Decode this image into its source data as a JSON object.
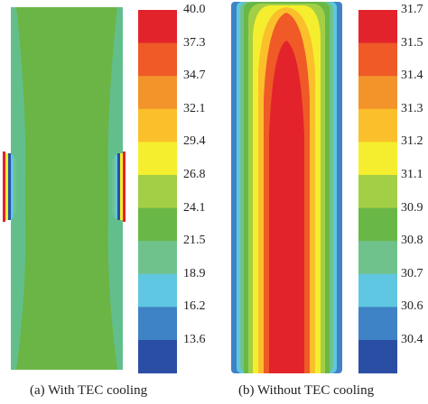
{
  "panels": {
    "a": {
      "caption": "(a)  With TEC cooling",
      "colorbar_ticks": [
        "40.0",
        "37.3",
        "34.7",
        "32.1",
        "29.4",
        "26.8",
        "24.1",
        "21.5",
        "18.9",
        "16.2",
        "13.6"
      ]
    },
    "b": {
      "caption": "(b)  Without TEC cooling",
      "colorbar_ticks": [
        "31.7",
        "31.5",
        "31.4",
        "31.3",
        "31.2",
        "31.1",
        "30.9",
        "30.8",
        "30.7",
        "30.6",
        "30.4"
      ]
    }
  },
  "colorbar_colors": [
    "#e3232b",
    "#ef5a27",
    "#f3942a",
    "#fbbf2b",
    "#f5ee2e",
    "#a3cf46",
    "#69b847",
    "#6fc28c",
    "#5fc7e1",
    "#3e83c5",
    "#2a4ea3"
  ],
  "colors": {
    "panel_a_fill": "#6bb546",
    "panel_a_edge": "#62bf8c",
    "tec_element_colors": [
      "#e3232b",
      "#f5ee2e",
      "#69b847",
      "#5fc7e1",
      "#2a4ea3"
    ]
  }
}
